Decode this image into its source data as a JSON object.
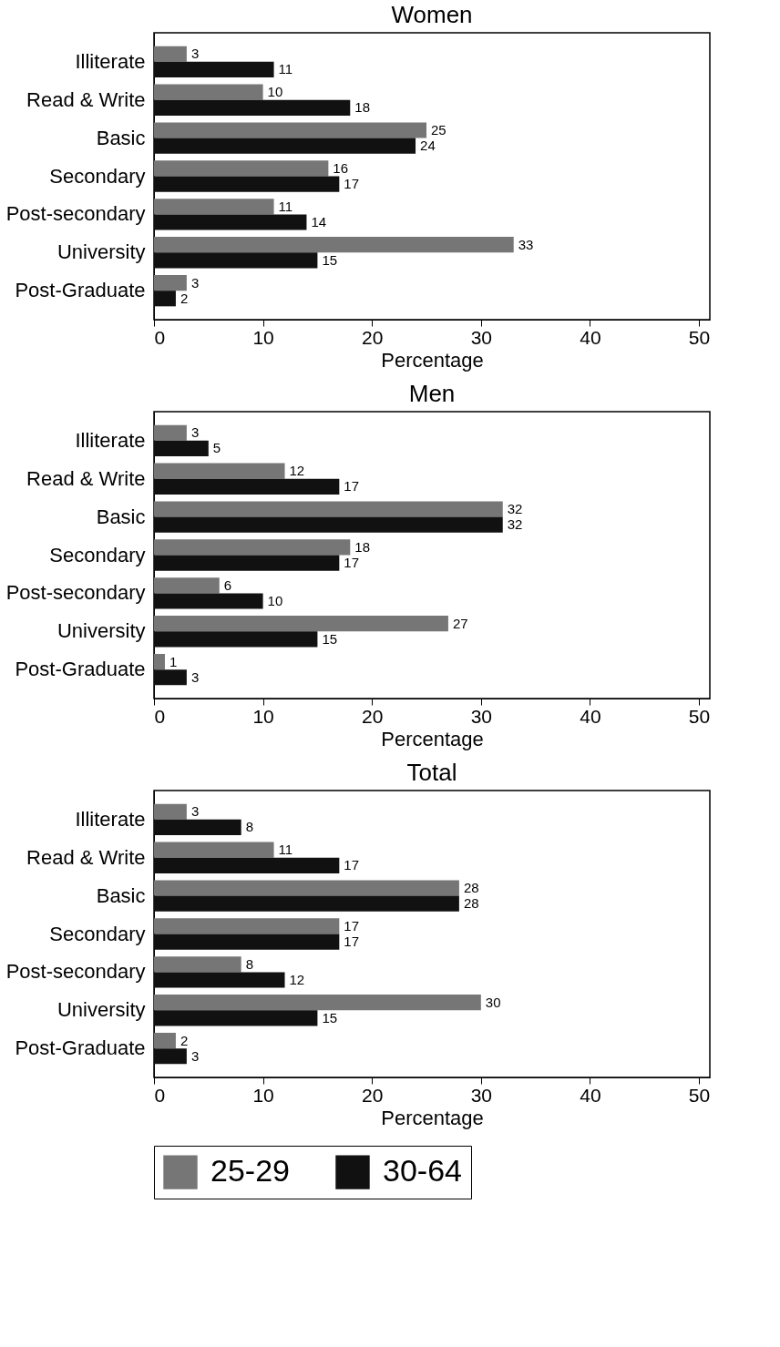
{
  "chart_data": [
    {
      "type": "bar",
      "orientation": "horizontal",
      "title": "Women",
      "xlabel": "Percentage",
      "categories": [
        "Illiterate",
        "Read & Write",
        "Basic",
        "Secondary",
        "Post-secondary",
        "University",
        "Post-Graduate"
      ],
      "series": [
        {
          "color": "#767676",
          "values": [
            3,
            10,
            25,
            16,
            11,
            33,
            3
          ]
        },
        {
          "color": "#111111",
          "values": [
            11,
            18,
            24,
            17,
            14,
            15,
            2
          ]
        }
      ],
      "xlim": [
        0,
        51
      ],
      "xticks": [
        0,
        10,
        20,
        30,
        40,
        50
      ],
      "data_labels": true,
      "legend": false
    },
    {
      "type": "bar",
      "orientation": "horizontal",
      "title": "Men",
      "xlabel": "Percentage",
      "categories": [
        "Illiterate",
        "Read & Write",
        "Basic",
        "Secondary",
        "Post-secondary",
        "University",
        "Post-Graduate"
      ],
      "series": [
        {
          "color": "#767676",
          "values": [
            3,
            12,
            32,
            18,
            6,
            27,
            1
          ]
        },
        {
          "color": "#111111",
          "values": [
            5,
            17,
            32,
            17,
            10,
            15,
            3
          ]
        }
      ],
      "xlim": [
        0,
        51
      ],
      "xticks": [
        0,
        10,
        20,
        30,
        40,
        50
      ],
      "data_labels": true,
      "legend": false
    },
    {
      "type": "bar",
      "orientation": "horizontal",
      "title": "Total",
      "xlabel": "Percentage",
      "categories": [
        "Illiterate",
        "Read & Write",
        "Basic",
        "Secondary",
        "Post-secondary",
        "University",
        "Post-Graduate"
      ],
      "series": [
        {
          "name": "25-29",
          "color": "#767676",
          "values": [
            3,
            11,
            28,
            17,
            8,
            30,
            2
          ]
        },
        {
          "name": "30-64",
          "color": "#111111",
          "values": [
            8,
            17,
            28,
            17,
            12,
            15,
            3
          ]
        }
      ],
      "xlim": [
        0,
        51
      ],
      "xticks": [
        0,
        10,
        20,
        30,
        40,
        50
      ],
      "data_labels": true,
      "legend": "bottom"
    }
  ]
}
